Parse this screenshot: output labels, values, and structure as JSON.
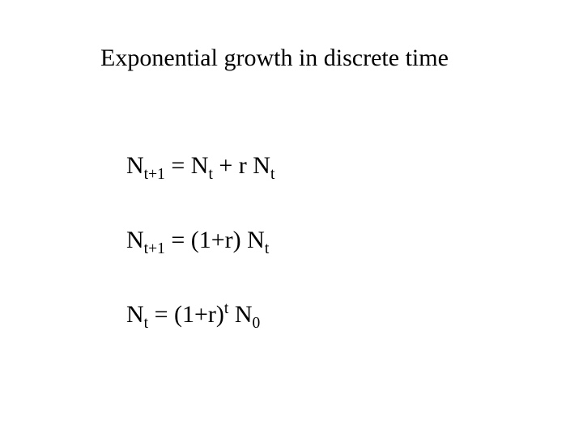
{
  "title": "Exponential growth in discrete time",
  "equations": {
    "eq1": {
      "lhs_base": "N",
      "lhs_sub": "t+1",
      "mid1": " = ",
      "r1_base": "N",
      "r1_sub": "t",
      "mid2": "  +  r ",
      "r2_base": "N",
      "r2_sub": "t"
    },
    "eq2": {
      "lhs_base": "N",
      "lhs_sub": "t+1",
      "mid": " = (1+r) ",
      "rhs_base": "N",
      "rhs_sub": "t"
    },
    "eq3": {
      "lhs_base": "N",
      "lhs_sub": "t",
      "mid1": " = (1+r)",
      "exp": "t",
      "mid2": "  ",
      "rhs_base": "N",
      "rhs_sub": "0"
    }
  },
  "style": {
    "background_color": "#ffffff",
    "text_color": "#000000",
    "font_family": "Times New Roman",
    "title_fontsize": 30,
    "equation_fontsize": 30,
    "subscript_scale": 0.65,
    "slide_width": 720,
    "slide_height": 540
  }
}
